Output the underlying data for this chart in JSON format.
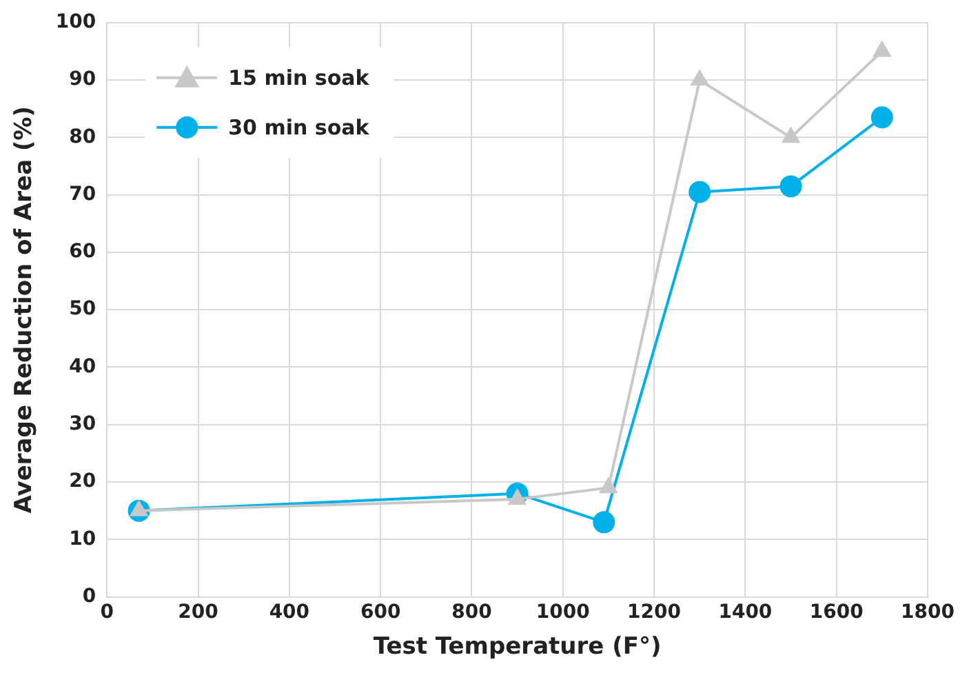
{
  "chart_data": {
    "type": "line",
    "xlabel": "Test Temperature (F°)",
    "ylabel": "Average Reduction of Area (%)",
    "xlim": [
      0,
      1800
    ],
    "xticks": [
      0,
      200,
      400,
      600,
      800,
      1000,
      1200,
      1400,
      1600,
      1800
    ],
    "ylim": [
      0,
      100
    ],
    "yticks": [
      0,
      10,
      20,
      30,
      40,
      50,
      60,
      70,
      80,
      90,
      100
    ],
    "grid": true,
    "legend": "top left",
    "line_style": "solid",
    "series": [
      {
        "name": "15 min soak",
        "color": "#c8c8c8",
        "marker": "triangle",
        "x": [
          70,
          900,
          1100,
          1300,
          1500,
          1700
        ],
        "values": [
          15,
          17,
          19,
          90,
          80,
          95
        ]
      },
      {
        "name": "30 min soak",
        "color": "#00b0e8",
        "marker": "circle",
        "x": [
          70,
          900,
          1090,
          1300,
          1500,
          1700
        ],
        "values": [
          15,
          18,
          13,
          70.5,
          71.5,
          83.5
        ]
      }
    ]
  }
}
